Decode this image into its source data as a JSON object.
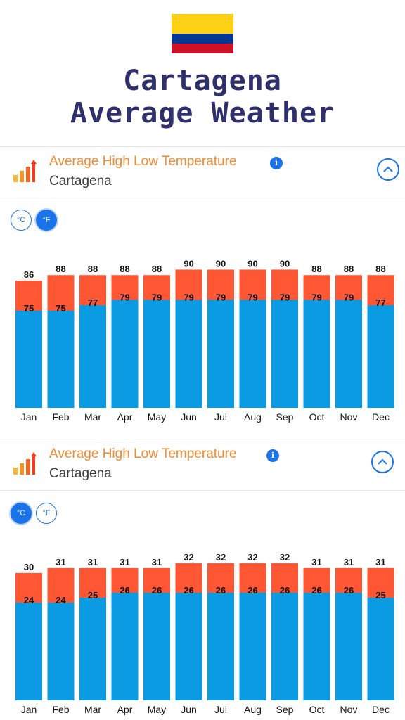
{
  "hero": {
    "title_line1": "Cartagena",
    "title_line2": "Average Weather",
    "flag_colors": [
      "#fcd116",
      "#003893",
      "#ce1126"
    ]
  },
  "colors": {
    "high": "#ff5733",
    "low": "#0a9be3",
    "accent": "#1a73e8",
    "header_title": "#f0892f"
  },
  "panels": [
    {
      "title": "Average High Low Temperature",
      "location": "Cartagena",
      "icons": [
        "bar-chart-icon",
        "info-icon",
        "chevron-up-icon"
      ],
      "units": {
        "celsius": "°C",
        "fahrenheit": "°F",
        "active": "fahrenheit"
      }
    },
    {
      "title": "Average High Low Temperature",
      "location": "Cartagena",
      "icons": [
        "bar-chart-icon",
        "info-icon",
        "chevron-up-icon"
      ],
      "units": {
        "celsius": "°C",
        "fahrenheit": "°F",
        "active": "celsius"
      }
    }
  ],
  "chart_data": [
    {
      "type": "bar",
      "stacked": "overlay",
      "unit": "°F",
      "categories": [
        "Jan",
        "Feb",
        "Mar",
        "Apr",
        "May",
        "Jun",
        "Jul",
        "Aug",
        "Sep",
        "Oct",
        "Nov",
        "Dec"
      ],
      "series": [
        {
          "name": "High",
          "values": [
            86,
            88,
            88,
            88,
            88,
            90,
            90,
            90,
            90,
            88,
            88,
            88
          ]
        },
        {
          "name": "Low",
          "values": [
            75,
            75,
            77,
            79,
            79,
            79,
            79,
            79,
            79,
            79,
            79,
            77
          ]
        }
      ],
      "title": "",
      "xlabel": "",
      "ylabel": ""
    },
    {
      "type": "bar",
      "stacked": "overlay",
      "unit": "°C",
      "categories": [
        "Jan",
        "Feb",
        "Mar",
        "Apr",
        "May",
        "Jun",
        "Jul",
        "Aug",
        "Sep",
        "Oct",
        "Nov",
        "Dec"
      ],
      "series": [
        {
          "name": "High",
          "values": [
            30,
            31,
            31,
            31,
            31,
            32,
            32,
            32,
            32,
            31,
            31,
            31
          ]
        },
        {
          "name": "Low",
          "values": [
            24,
            24,
            25,
            26,
            26,
            26,
            26,
            26,
            26,
            26,
            26,
            25
          ]
        }
      ],
      "title": "",
      "xlabel": "",
      "ylabel": ""
    }
  ]
}
